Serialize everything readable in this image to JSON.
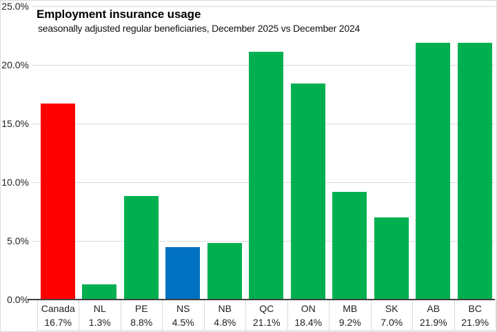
{
  "chart_data": {
    "type": "bar",
    "title": "Employment insurance usage",
    "subtitle": "seasonally adjusted regular beneficiaries, December 2025 vs December 2024",
    "categories": [
      "Canada",
      "NL",
      "PE",
      "NS",
      "NB",
      "QC",
      "ON",
      "MB",
      "SK",
      "AB",
      "BC"
    ],
    "values": [
      16.7,
      1.3,
      8.8,
      4.5,
      4.8,
      21.1,
      18.4,
      9.2,
      7.0,
      21.9,
      21.9
    ],
    "value_labels": [
      "16.7%",
      "1.3%",
      "8.8%",
      "4.5%",
      "4.8%",
      "21.1%",
      "18.4%",
      "9.2%",
      "7.0%",
      "21.9%",
      "21.9%"
    ],
    "bar_colors": [
      "#FF0000",
      "#00B050",
      "#00B050",
      "#0070C0",
      "#00B050",
      "#00B050",
      "#00B050",
      "#00B050",
      "#00B050",
      "#00B050",
      "#00B050"
    ],
    "xlabel": "",
    "ylabel": "",
    "ylim": [
      0,
      25
    ],
    "ytick_labels": [
      "25.0%",
      "20.0%",
      "15.0%",
      "10.0%",
      "5.0%",
      "0.0%"
    ],
    "grid": true,
    "legend": "none"
  },
  "colors": {
    "highlight_red": "#FF0000",
    "highlight_blue": "#0070C0",
    "default_green": "#00B050",
    "gridline": "#D9D9D9",
    "axis": "#404040"
  }
}
